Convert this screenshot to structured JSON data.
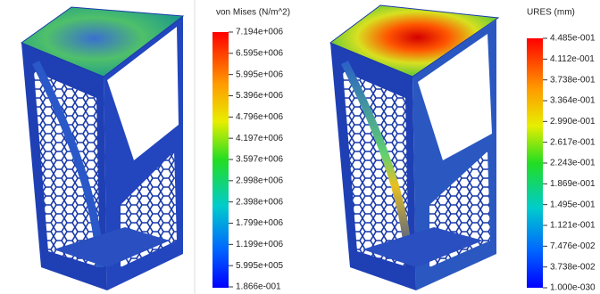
{
  "left": {
    "title": "von Mises (N/m^2)",
    "labels": [
      "7.194e+006",
      "6.595e+006",
      "5.995e+006",
      "5.396e+006",
      "4.796e+006",
      "4.197e+006",
      "3.597e+006",
      "2.998e+006",
      "2.398e+006",
      "1.799e+006",
      "1.199e+006",
      "5.995e+005",
      "1.866e-001"
    ]
  },
  "right": {
    "title": "URES (mm)",
    "labels": [
      "4.485e-001",
      "4.112e-001",
      "3.738e-001",
      "3.364e-001",
      "2.990e-001",
      "2.617e-001",
      "2.243e-001",
      "1.869e-001",
      "1.495e-001",
      "1.121e-001",
      "7.476e-002",
      "3.738e-002",
      "1.000e-030"
    ]
  }
}
